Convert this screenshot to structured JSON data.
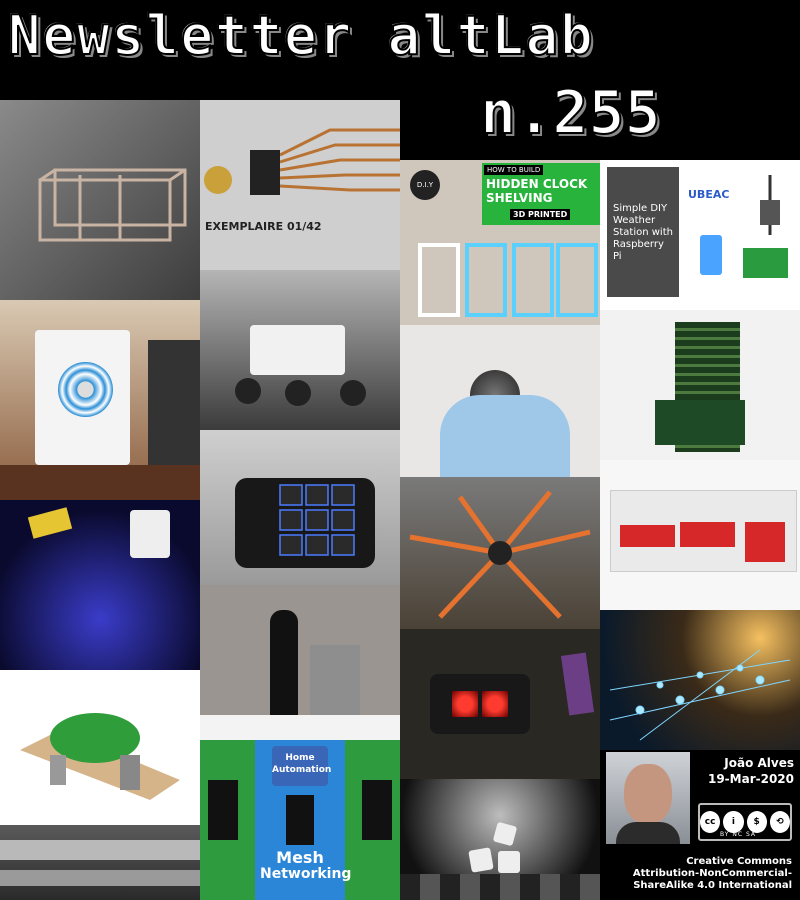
{
  "header": {
    "title": "Newsletter altLab",
    "issue": "n.255"
  },
  "tiles": {
    "clock": {
      "line1": "HOW TO BUILD",
      "line2": "HIDDEN CLOCK",
      "line3": "SHELVING",
      "line4": "3D PRINTED",
      "badge": "D.I.Y"
    },
    "weather": {
      "text": "Simple DIY Weather Station with Raspberry Pi",
      "brand": "UBEAC"
    },
    "pcb": {
      "caption": "EXEMPLAIRE 01/42"
    },
    "mesh": {
      "line1": "Home",
      "line2": "Automation",
      "line3": "Mesh",
      "line4": "Networking"
    }
  },
  "author": {
    "name": "João Alves",
    "date": "19-Mar-2020"
  },
  "license": {
    "badge": "BY NC SA",
    "text_1": "Creative Commons",
    "text_2": "Attribution-NonCommercial-",
    "text_3": "ShareAlike 4.0 International"
  }
}
